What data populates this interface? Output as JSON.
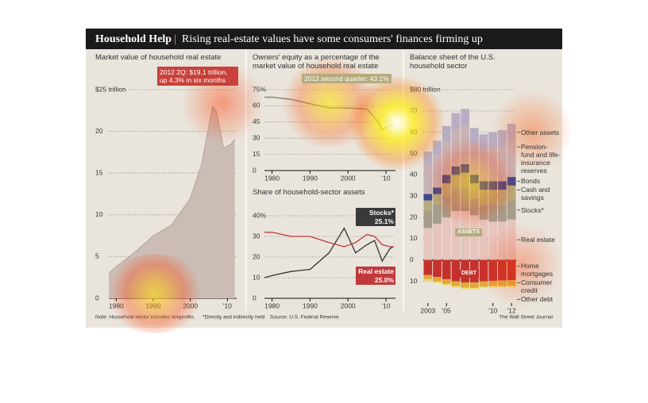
{
  "header": {
    "title": "Household Help",
    "subtitle": "Rising real-estate values have some consumers' finances firming up"
  },
  "chart_data": [
    {
      "type": "area",
      "title": "Market value of household real estate",
      "annotation": "2012 2Q: $19.1 trillion, up 4.3% in six months",
      "color": "#cbbdb6",
      "x": [
        1978,
        1980,
        1985,
        1990,
        1995,
        2000,
        2003,
        2006,
        2007,
        2009,
        2011,
        2012
      ],
      "values": [
        3,
        3.8,
        5.5,
        7.5,
        8.8,
        12,
        16,
        23,
        22.5,
        18,
        18.5,
        19.1
      ],
      "xlim": [
        1978,
        2012.5
      ],
      "xticks": [
        1980,
        1990,
        2000,
        {
          "value": 2010,
          "label": "'10"
        }
      ],
      "ylim": [
        0,
        25
      ],
      "yticks": [
        0,
        5,
        10,
        15,
        20,
        {
          "value": 25,
          "label": "$25 trillion"
        }
      ],
      "grid": true
    },
    {
      "type": "line",
      "title": "Owners' equity as a percentage of the market value of household real estate",
      "annotation": "2012 second quarter: 43.1%",
      "color": "#8d8577",
      "x": [
        1978,
        1980,
        1985,
        1990,
        1995,
        2000,
        2005,
        2008,
        2009,
        2012
      ],
      "values": [
        68,
        68,
        66,
        62,
        58,
        58,
        57,
        45,
        38,
        43.1
      ],
      "xlim": [
        1978,
        2012.5
      ],
      "xticks": [
        1980,
        1990,
        2000,
        {
          "value": 2010,
          "label": "'10"
        }
      ],
      "ylim": [
        0,
        75
      ],
      "yticks": [
        0,
        15,
        30,
        45,
        60,
        {
          "value": 75,
          "label": "75%"
        }
      ],
      "grid": true
    },
    {
      "type": "line",
      "title": "Share of household-sector assets",
      "x": [
        1978,
        1980,
        1985,
        1990,
        1995,
        1999,
        2002,
        2005,
        2007,
        2009,
        2011,
        2012
      ],
      "series": [
        {
          "name": "Stocks*",
          "color": "#333333",
          "box": "#3a3a3a",
          "end_label": "25.1%",
          "values": [
            10,
            11,
            13,
            14,
            22,
            34,
            22,
            26,
            28,
            18,
            24,
            25.1
          ]
        },
        {
          "name": "Real estate",
          "color": "#c0393b",
          "box": "#c0393b",
          "end_label": "25.0%",
          "values": [
            32,
            32,
            30,
            30,
            27,
            25,
            27,
            31,
            30,
            26,
            25,
            25.0
          ]
        }
      ],
      "xlim": [
        1978,
        2012.5
      ],
      "xticks": [
        1980,
        1990,
        2000,
        {
          "value": 2010,
          "label": "'10"
        }
      ],
      "ylim": [
        0,
        40
      ],
      "yticks": [
        0,
        10,
        20,
        30,
        {
          "value": 40,
          "label": "40%"
        }
      ],
      "grid": true
    },
    {
      "type": "stacked_bar",
      "title": "Balance sheet of the U.S. household sector",
      "assets_label": "ASSETS",
      "debt_label": "DEBT",
      "x": [
        2003,
        2004,
        2005,
        2006,
        2007,
        2008,
        2009,
        2010,
        2011,
        2012
      ],
      "series": [
        {
          "name": "Real estate",
          "color": "#e6c5be",
          "values": [
            15,
            17,
            20,
            23,
            23,
            21,
            19,
            18,
            18,
            19
          ]
        },
        {
          "name": "Stocks*",
          "color": "#a69c8a",
          "values": [
            8,
            9,
            10,
            11,
            11,
            8,
            7,
            8,
            8,
            9
          ]
        },
        {
          "name": "Cash and savings",
          "color": "#b5ab7d",
          "values": [
            5,
            5,
            6,
            6,
            7,
            7,
            7,
            7,
            7,
            7
          ]
        },
        {
          "name": "Bonds",
          "color": "#3d4a8c",
          "values": [
            3,
            3,
            4,
            4,
            4,
            4,
            4,
            4,
            4,
            4
          ]
        },
        {
          "name": "Pension-fund and life-insurance reserves",
          "color": "#c8b2b6",
          "values": [
            14,
            15,
            16,
            17,
            18,
            15,
            15,
            16,
            16,
            17
          ]
        },
        {
          "name": "Other assets",
          "color": "#b8aec4",
          "values": [
            6,
            7,
            7,
            8,
            8,
            7,
            7,
            7,
            8,
            8
          ]
        },
        {
          "name": "Home mortgages",
          "color": "#c4312d",
          "values": [
            -7,
            -8,
            -9,
            -10,
            -10.5,
            -10.5,
            -10,
            -9.8,
            -9.6,
            -9.4
          ]
        },
        {
          "name": "Consumer credit",
          "color": "#e0a93a",
          "values": [
            -2,
            -2.1,
            -2.2,
            -2.3,
            -2.5,
            -2.6,
            -2.5,
            -2.5,
            -2.6,
            -2.7
          ]
        },
        {
          "name": "Other debt",
          "color": "#f2dd70",
          "values": [
            -0.7,
            -0.7,
            -0.7,
            -0.7,
            -0.7,
            -0.7,
            -0.7,
            -0.7,
            -0.7,
            -0.7
          ]
        }
      ],
      "xlim": [
        2002.5,
        2012.5
      ],
      "xticks": [
        2003,
        {
          "value": 2005,
          "label": "'05"
        },
        {
          "value": 2010,
          "label": "'10"
        },
        {
          "value": 2012,
          "label": "'12"
        }
      ],
      "ylim": [
        -12,
        80
      ],
      "yticks": [
        {
          "value": -10,
          "label": "10"
        },
        0,
        10,
        20,
        30,
        40,
        50,
        60,
        70,
        {
          "value": 80,
          "label": "$80 trillion"
        }
      ],
      "grid": true
    }
  ],
  "footer": {
    "note": "Note: Household sector includes nonprofits.",
    "footnote": "*Directly and indirectly held",
    "source": "Source: U.S. Federal Reserve",
    "credit": "The Wall Street Journal"
  }
}
